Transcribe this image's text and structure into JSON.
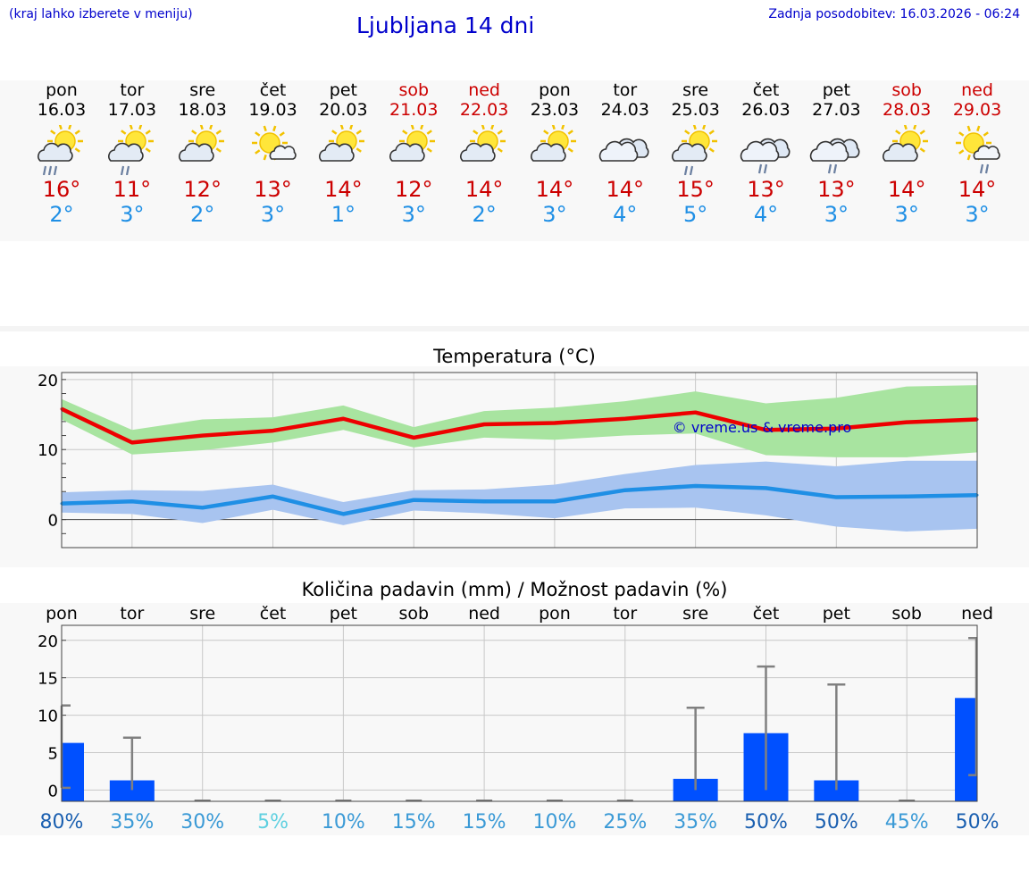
{
  "header": {
    "note": "(kraj lahko izberete v meniju)",
    "title": "Ljubljana 14 dni",
    "updated": "Zadnja posodobitev: 16.03.2026 - 06:24"
  },
  "days": [
    {
      "name": "pon",
      "date": "16.03",
      "weekend": false,
      "icon": "sun-cloud-heavy-rain-icon",
      "tmax": "16°",
      "tmin": "2°"
    },
    {
      "name": "tor",
      "date": "17.03",
      "weekend": false,
      "icon": "sun-cloud-rain-icon",
      "tmax": "11°",
      "tmin": "3°"
    },
    {
      "name": "sre",
      "date": "18.03",
      "weekend": false,
      "icon": "sun-cloud-icon",
      "tmax": "12°",
      "tmin": "2°"
    },
    {
      "name": "čet",
      "date": "19.03",
      "weekend": false,
      "icon": "sun-small-cloud-icon",
      "tmax": "13°",
      "tmin": "3°"
    },
    {
      "name": "pet",
      "date": "20.03",
      "weekend": false,
      "icon": "sun-cloud-icon",
      "tmax": "14°",
      "tmin": "1°"
    },
    {
      "name": "sob",
      "date": "21.03",
      "weekend": true,
      "icon": "sun-cloud-icon",
      "tmax": "12°",
      "tmin": "3°"
    },
    {
      "name": "ned",
      "date": "22.03",
      "weekend": true,
      "icon": "sun-cloud-icon",
      "tmax": "14°",
      "tmin": "2°"
    },
    {
      "name": "pon",
      "date": "23.03",
      "weekend": false,
      "icon": "sun-cloud-icon",
      "tmax": "14°",
      "tmin": "3°"
    },
    {
      "name": "tor",
      "date": "24.03",
      "weekend": false,
      "icon": "cloud-icon",
      "tmax": "14°",
      "tmin": "4°"
    },
    {
      "name": "sre",
      "date": "25.03",
      "weekend": false,
      "icon": "sun-cloud-rain-icon",
      "tmax": "15°",
      "tmin": "5°"
    },
    {
      "name": "čet",
      "date": "26.03",
      "weekend": false,
      "icon": "cloud-rain-icon",
      "tmax": "13°",
      "tmin": "4°"
    },
    {
      "name": "pet",
      "date": "27.03",
      "weekend": false,
      "icon": "cloud-rain-icon",
      "tmax": "13°",
      "tmin": "3°"
    },
    {
      "name": "sob",
      "date": "28.03",
      "weekend": true,
      "icon": "sun-cloud-icon",
      "tmax": "14°",
      "tmin": "3°"
    },
    {
      "name": "ned",
      "date": "29.03",
      "weekend": true,
      "icon": "sun-small-cloud-rain-icon",
      "tmax": "14°",
      "tmin": "3°"
    }
  ],
  "colors": {
    "weekend": "#cc0000",
    "max_line": "#ee0000",
    "max_band": "#a8e4a0",
    "min_line": "#1f8fe5",
    "min_band": "#a8c4f0",
    "bar": "#0050ff",
    "whisker": "#808080",
    "prob_dark": "#1a5fb0",
    "prob_mid": "#3b9ad6",
    "prob_light": "#5fd0e0"
  },
  "chart_data": [
    {
      "type": "line",
      "title": "Temperatura (°C)",
      "watermark": "© vreme.us & vreme.pro",
      "ylim": [
        -4,
        21
      ],
      "yticks": [
        0,
        10,
        20
      ],
      "x": [
        "16.03",
        "17.03",
        "18.03",
        "19.03",
        "20.03",
        "21.03",
        "22.03",
        "23.03",
        "24.03",
        "25.03",
        "26.03",
        "27.03",
        "28.03",
        "29.03"
      ],
      "series": [
        {
          "values": [
            15.8,
            11.0,
            12.0,
            12.7,
            14.4,
            11.7,
            13.6,
            13.8,
            14.4,
            15.3,
            12.8,
            13.0,
            13.9,
            14.3
          ],
          "band_low": [
            14.3,
            9.3,
            9.9,
            11.0,
            12.8,
            10.3,
            11.7,
            11.4,
            12.0,
            12.3,
            9.2,
            8.9,
            8.9,
            9.6
          ],
          "band_high": [
            17.2,
            12.8,
            14.3,
            14.6,
            16.3,
            13.2,
            15.5,
            16.0,
            16.9,
            18.3,
            16.6,
            17.4,
            19.0,
            19.2
          ]
        },
        {
          "values": [
            2.3,
            2.6,
            1.7,
            3.3,
            0.8,
            2.8,
            2.6,
            2.6,
            4.2,
            4.8,
            4.5,
            3.2,
            3.3,
            3.5
          ],
          "band_low": [
            1.0,
            0.8,
            -0.5,
            1.4,
            -0.8,
            1.3,
            0.9,
            0.2,
            1.6,
            1.7,
            0.6,
            -1.0,
            -1.7,
            -1.3
          ],
          "band_high": [
            3.9,
            4.2,
            4.1,
            5.0,
            2.5,
            4.2,
            4.3,
            5.0,
            6.5,
            7.8,
            8.3,
            7.6,
            8.4,
            8.4
          ]
        }
      ]
    },
    {
      "type": "bar",
      "title": "Količina padavin (mm) / Možnost padavin (%)",
      "ylim": [
        -1.5,
        22
      ],
      "yticks": [
        0,
        5,
        10,
        15,
        20
      ],
      "categories": [
        "pon",
        "tor",
        "sre",
        "čet",
        "pet",
        "sob",
        "ned",
        "pon",
        "tor",
        "sre",
        "čet",
        "pet",
        "sob",
        "ned"
      ],
      "values": [
        6.3,
        1.3,
        0,
        0,
        0,
        0,
        0,
        0,
        0,
        1.5,
        7.6,
        1.3,
        0,
        12.3
      ],
      "whisker_low": [
        0.3,
        0,
        0,
        0,
        0,
        0,
        0,
        0,
        0,
        0,
        0,
        0,
        0,
        2.0
      ],
      "whisker_high": [
        11.3,
        7.0,
        0,
        0,
        0,
        0,
        0,
        0,
        0,
        11.0,
        16.5,
        14.1,
        0,
        20.3
      ],
      "probability": [
        "80%",
        "35%",
        "30%",
        "5%",
        "10%",
        "15%",
        "15%",
        "10%",
        "25%",
        "35%",
        "50%",
        "50%",
        "45%",
        "50%"
      ]
    }
  ]
}
